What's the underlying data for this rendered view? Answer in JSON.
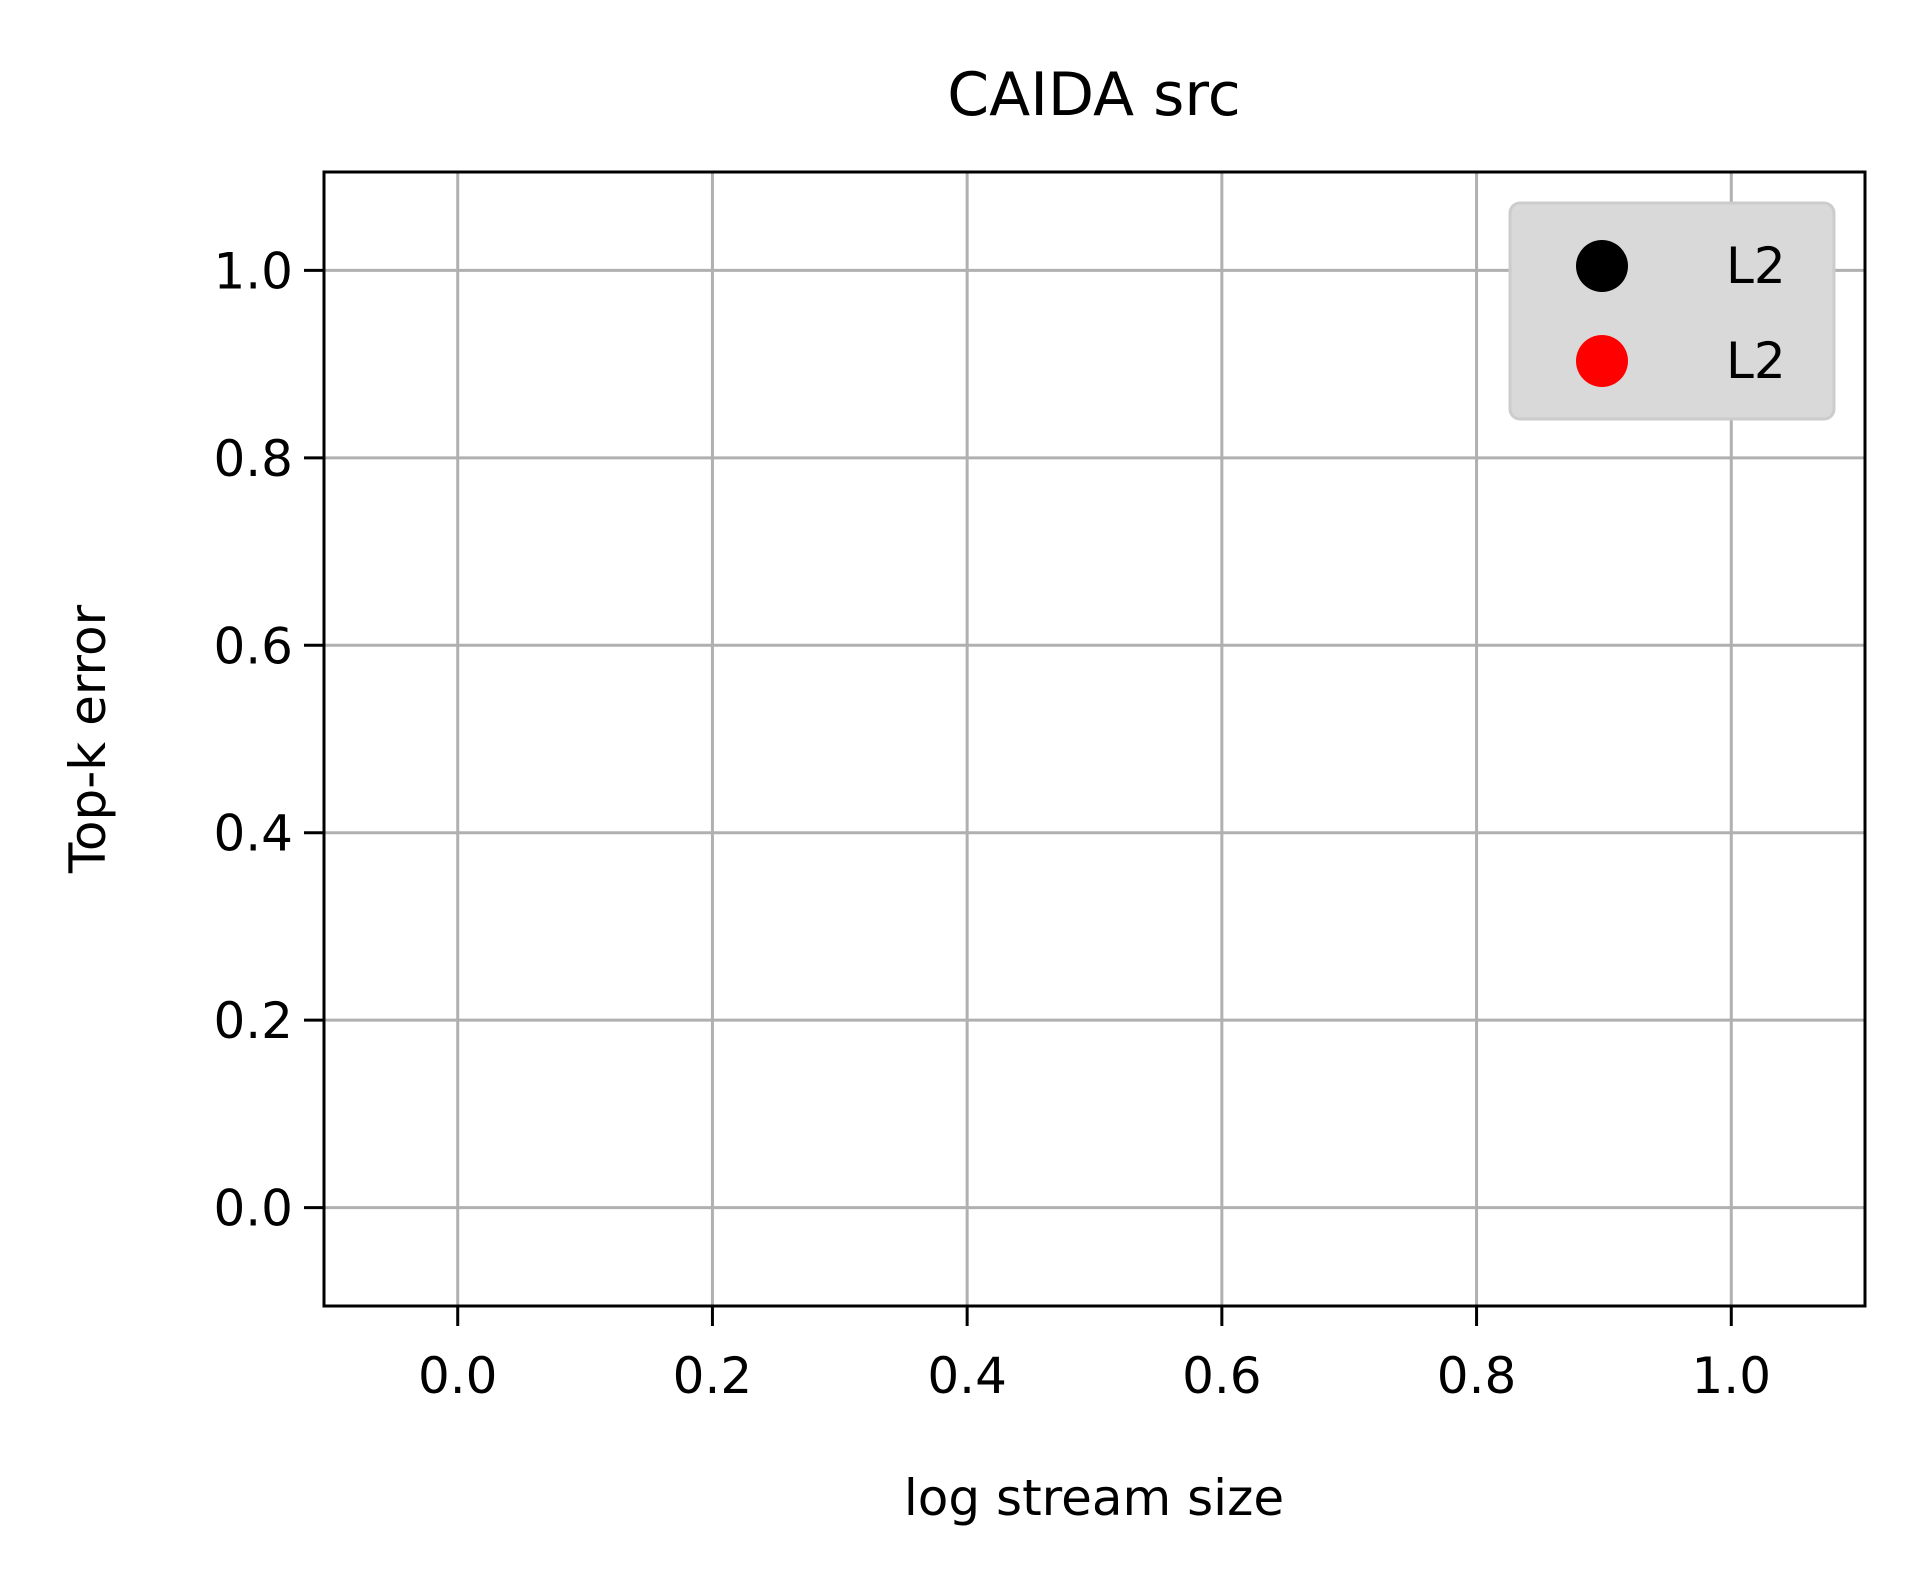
{
  "chart_data": {
    "type": "scatter",
    "title": "CAIDA src",
    "xlabel": "log stream size",
    "ylabel": "Top-k error",
    "xlim": [
      -0.105,
      1.105
    ],
    "ylim": [
      -0.105,
      1.105
    ],
    "x_ticks": [
      0.0,
      0.2,
      0.4,
      0.6,
      0.8,
      1.0
    ],
    "y_ticks": [
      0.0,
      0.2,
      0.4,
      0.6,
      0.8,
      1.0
    ],
    "x_tick_labels": [
      "0.0",
      "0.2",
      "0.4",
      "0.6",
      "0.8",
      "1.0"
    ],
    "y_tick_labels": [
      "0.0",
      "0.2",
      "0.4",
      "0.6",
      "0.8",
      "1.0"
    ],
    "grid": true,
    "legend_position": "top-right",
    "series": [
      {
        "name": "L2",
        "color": "#000000",
        "x": [],
        "y": []
      },
      {
        "name": "L2",
        "color": "#ff0000",
        "x": [],
        "y": []
      }
    ]
  }
}
